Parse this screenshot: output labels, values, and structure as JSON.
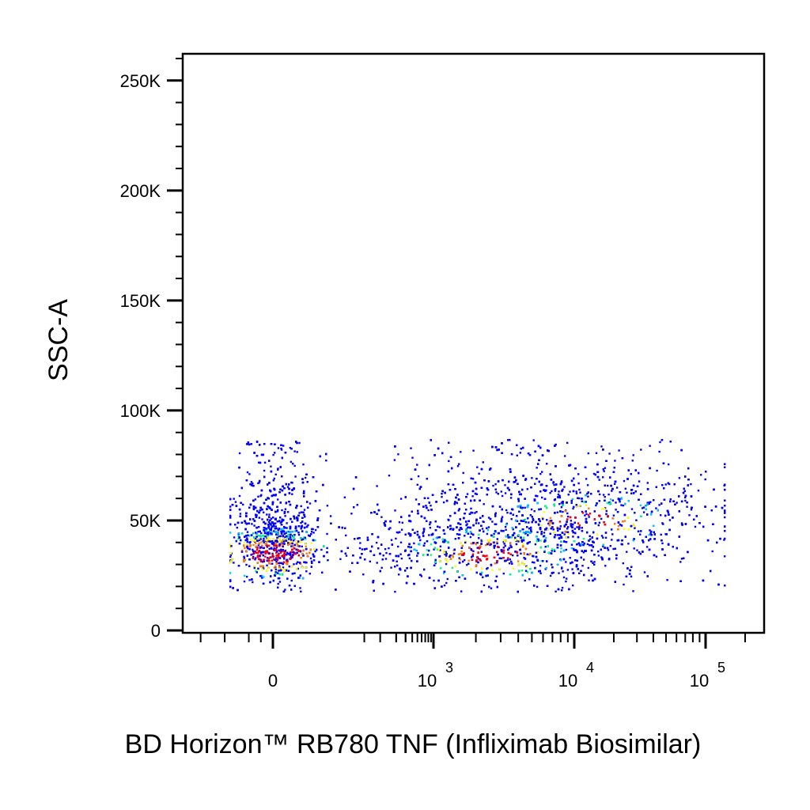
{
  "chart_data": {
    "type": "scatter",
    "subtype": "flow-cytometry density dot plot",
    "xlabel": "BD Horizon™ RB780 TNF (Infliximab Biosimilar)",
    "ylabel": "SSC-A",
    "x_scale": "biexponential (linear near 0, log above)",
    "y_scale": "linear",
    "ylim": [
      0,
      262144
    ],
    "y_ticks": [
      {
        "value": 0,
        "label": "0"
      },
      {
        "value": 50000,
        "label": "50K"
      },
      {
        "value": 100000,
        "label": "100K"
      },
      {
        "value": 150000,
        "label": "150K"
      },
      {
        "value": 200000,
        "label": "200K"
      },
      {
        "value": 250000,
        "label": "250K"
      }
    ],
    "x_ticks": [
      {
        "value": 0,
        "base": "0",
        "exp": ""
      },
      {
        "value": 1000,
        "base": "10",
        "exp": "3"
      },
      {
        "value": 10000,
        "base": "10",
        "exp": "4"
      },
      {
        "value": 100000,
        "base": "10",
        "exp": "5"
      }
    ],
    "grid": false,
    "legend": "none",
    "color_scale": [
      "#0000ff",
      "#00c8ff",
      "#00ff80",
      "#ffff00",
      "#ff8000",
      "#ff0000"
    ],
    "populations": [
      {
        "x_center": 0,
        "y_center": 35000,
        "y_spread": 12000,
        "share": 0.35
      },
      {
        "x_center": 2500,
        "y_center": 35000,
        "y_spread": 11000,
        "share": 0.4
      },
      {
        "x_center": 12000,
        "y_center": 50000,
        "y_spread": 13000,
        "share": 0.25
      }
    ],
    "y_range_of_events": [
      18000,
      87000
    ]
  }
}
